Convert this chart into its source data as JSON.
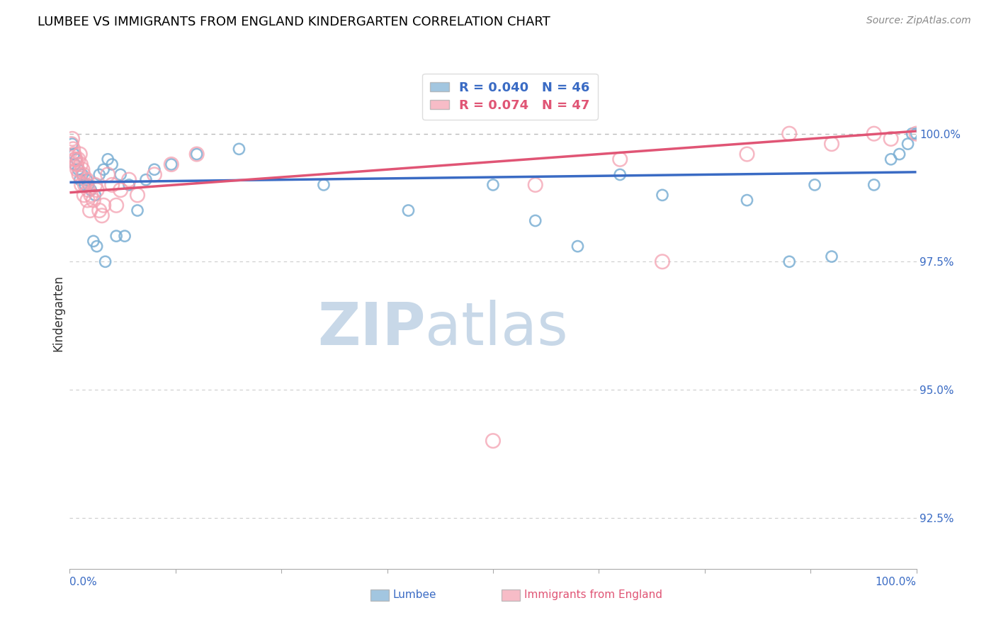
{
  "title": "LUMBEE VS IMMIGRANTS FROM ENGLAND KINDERGARTEN CORRELATION CHART",
  "source_text": "Source: ZipAtlas.com",
  "ylabel": "Kindergarten",
  "legend_blue_r": "R = 0.040",
  "legend_blue_n": "N = 46",
  "legend_pink_r": "R = 0.074",
  "legend_pink_n": "N = 47",
  "ytick_values": [
    92.5,
    95.0,
    97.5,
    100.0
  ],
  "xlim": [
    0.0,
    100.0
  ],
  "ylim": [
    91.5,
    101.5
  ],
  "blue_color": "#7BAFD4",
  "pink_color": "#F4A0B0",
  "blue_line_color": "#3A6BC4",
  "pink_line_color": "#E05575",
  "grid_color": "#CCCCCC",
  "watermark_color": "#C8D8E8",
  "blue_line_y0": 99.05,
  "blue_line_y1": 99.25,
  "pink_line_y0": 98.85,
  "pink_line_y1": 100.05,
  "blue_scatter_x": [
    0.3,
    0.5,
    0.6,
    0.8,
    1.0,
    1.2,
    1.5,
    1.8,
    2.0,
    2.2,
    2.5,
    3.0,
    3.5,
    4.0,
    4.5,
    5.0,
    6.0,
    7.0,
    8.0,
    9.0,
    10.0,
    12.0,
    15.0,
    20.0,
    30.0,
    40.0,
    50.0,
    55.0,
    60.0,
    70.0,
    80.0,
    85.0,
    90.0,
    95.0,
    97.0,
    98.0,
    99.0,
    99.5,
    100.0,
    2.8,
    3.2,
    4.2,
    5.5,
    6.5,
    65.0,
    88.0
  ],
  "blue_scatter_y": [
    99.8,
    99.6,
    99.4,
    99.5,
    99.3,
    99.1,
    99.2,
    99.0,
    99.1,
    99.0,
    98.9,
    98.8,
    99.2,
    99.3,
    99.5,
    99.4,
    99.2,
    99.0,
    98.5,
    99.1,
    99.3,
    99.4,
    99.6,
    99.7,
    99.0,
    98.5,
    99.0,
    98.3,
    97.8,
    98.8,
    98.7,
    97.5,
    97.6,
    99.0,
    99.5,
    99.6,
    99.8,
    100.0,
    100.0,
    97.9,
    97.8,
    97.5,
    98.0,
    98.0,
    99.2,
    99.0
  ],
  "pink_scatter_x": [
    0.2,
    0.3,
    0.4,
    0.5,
    0.6,
    0.8,
    0.9,
    1.0,
    1.2,
    1.3,
    1.5,
    1.6,
    1.8,
    2.0,
    2.2,
    2.5,
    2.8,
    3.0,
    3.2,
    3.5,
    4.0,
    5.0,
    6.0,
    7.0,
    8.0,
    10.0,
    12.0,
    15.0,
    0.7,
    1.1,
    1.4,
    1.7,
    2.1,
    2.4,
    3.8,
    4.5,
    5.5,
    55.0,
    65.0,
    80.0,
    85.0,
    90.0,
    95.0,
    97.0,
    100.0,
    50.0,
    70.0
  ],
  "pink_scatter_y": [
    99.8,
    99.9,
    99.7,
    99.6,
    99.5,
    99.4,
    99.3,
    99.5,
    99.6,
    99.4,
    99.3,
    99.2,
    99.0,
    99.1,
    98.9,
    98.8,
    98.7,
    99.0,
    98.9,
    98.5,
    98.6,
    99.0,
    98.9,
    99.1,
    98.8,
    99.2,
    99.4,
    99.6,
    99.5,
    99.2,
    99.0,
    98.8,
    98.7,
    98.5,
    98.4,
    99.2,
    98.6,
    99.0,
    99.5,
    99.6,
    100.0,
    99.8,
    100.0,
    99.9,
    100.0,
    94.0,
    97.5
  ],
  "blue_marker_size": 120,
  "pink_marker_size": 200,
  "background_color": "#FFFFFF",
  "title_fontsize": 13,
  "tick_label_color": "#3A6BC4",
  "ylabel_color": "#333333",
  "source_color": "#888888"
}
